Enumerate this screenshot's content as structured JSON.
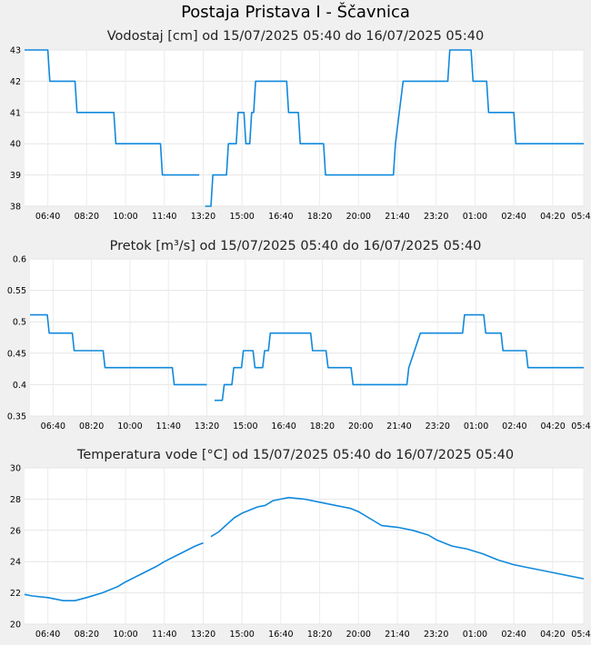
{
  "page": {
    "title": "Postaja Pristava I - Ščavnica"
  },
  "chart_data": [
    {
      "type": "line",
      "title": "Vodostaj [cm] od 15/07/2025 05:40 do 16/07/2025 05:40",
      "xlabel": "",
      "ylabel": "",
      "x_range": [
        "05:40",
        "05:40"
      ],
      "x_ticks": [
        "06:40",
        "08:20",
        "10:00",
        "11:40",
        "13:20",
        "15:00",
        "16:40",
        "18:20",
        "20:00",
        "21:40",
        "23:20",
        "01:00",
        "02:40",
        "04:20",
        "05:40"
      ],
      "ylim": [
        38,
        43
      ],
      "y_ticks": [
        "38",
        "39",
        "40",
        "41",
        "42",
        "43"
      ],
      "grid": true,
      "color": "#1089dc",
      "series": [
        {
          "points": [
            [
              "05:40",
              43
            ],
            [
              "06:40",
              43
            ],
            [
              "06:45",
              42
            ],
            [
              "07:50",
              42
            ],
            [
              "07:55",
              41
            ],
            [
              "09:30",
              41
            ],
            [
              "09:35",
              40
            ],
            [
              "11:30",
              40
            ],
            [
              "11:35",
              39
            ],
            [
              "13:10",
              39
            ],
            null,
            [
              "13:25",
              38
            ],
            [
              "13:40",
              38
            ],
            [
              "13:45",
              39
            ],
            [
              "14:20",
              39
            ],
            [
              "14:25",
              40
            ],
            [
              "14:45",
              40
            ],
            [
              "14:50",
              41
            ],
            [
              "15:05",
              41
            ],
            [
              "15:10",
              40
            ],
            [
              "15:20",
              40
            ],
            [
              "15:25",
              41
            ],
            [
              "15:30",
              41
            ],
            [
              "15:35",
              42
            ],
            [
              "16:55",
              42
            ],
            [
              "17:00",
              41
            ],
            [
              "17:25",
              41
            ],
            [
              "17:30",
              40
            ],
            [
              "18:30",
              40
            ],
            [
              "18:35",
              39
            ],
            [
              "21:30",
              39
            ],
            [
              "21:35",
              40
            ],
            [
              "21:45",
              41
            ],
            [
              "21:55",
              42
            ],
            [
              "23:50",
              42
            ],
            [
              "23:55",
              43
            ],
            [
              "00:50",
              43
            ],
            [
              "00:55",
              42
            ],
            [
              "01:30",
              42
            ],
            [
              "01:35",
              41
            ],
            [
              "02:40",
              41
            ],
            [
              "02:45",
              40
            ],
            [
              "05:40",
              40
            ]
          ]
        }
      ]
    },
    {
      "type": "line",
      "title": "Pretok [m³/s] od 15/07/2025 05:40 do 16/07/2025 05:40",
      "xlabel": "",
      "ylabel": "",
      "x_range": [
        "05:40",
        "05:40"
      ],
      "x_ticks": [
        "06:40",
        "08:20",
        "10:00",
        "11:40",
        "13:20",
        "15:00",
        "16:40",
        "18:20",
        "20:00",
        "21:40",
        "23:20",
        "01:00",
        "02:40",
        "04:20",
        "05:40"
      ],
      "ylim": [
        0.35,
        0.6
      ],
      "y_ticks": [
        "0.35",
        "0.4",
        "0.45",
        "0.5",
        "0.55",
        "0.6"
      ],
      "grid": true,
      "color": "#1089dc",
      "series": [
        {
          "points": [
            [
              "05:40",
              0.511
            ],
            [
              "06:25",
              0.511
            ],
            [
              "06:30",
              0.482
            ],
            [
              "07:30",
              0.482
            ],
            [
              "07:35",
              0.454
            ],
            [
              "08:50",
              0.454
            ],
            [
              "08:55",
              0.427
            ],
            [
              "11:50",
              0.427
            ],
            [
              "11:55",
              0.4
            ],
            [
              "13:20",
              0.4
            ],
            null,
            [
              "13:40",
              0.375
            ],
            [
              "14:00",
              0.375
            ],
            [
              "14:05",
              0.4
            ],
            [
              "14:25",
              0.4
            ],
            [
              "14:30",
              0.427
            ],
            [
              "14:50",
              0.427
            ],
            [
              "14:55",
              0.454
            ],
            [
              "15:20",
              0.454
            ],
            [
              "15:25",
              0.427
            ],
            [
              "15:45",
              0.427
            ],
            [
              "15:50",
              0.454
            ],
            [
              "16:00",
              0.454
            ],
            [
              "16:05",
              0.482
            ],
            [
              "17:50",
              0.482
            ],
            [
              "17:55",
              0.454
            ],
            [
              "18:30",
              0.454
            ],
            [
              "18:35",
              0.427
            ],
            [
              "19:35",
              0.427
            ],
            [
              "19:40",
              0.4
            ],
            [
              "22:00",
              0.4
            ],
            [
              "22:05",
              0.427
            ],
            [
              "22:20",
              0.454
            ],
            [
              "22:35",
              0.482
            ],
            [
              "00:25",
              0.482
            ],
            [
              "00:30",
              0.511
            ],
            [
              "01:20",
              0.511
            ],
            [
              "01:25",
              0.482
            ],
            [
              "02:05",
              0.482
            ],
            [
              "02:10",
              0.454
            ],
            [
              "03:10",
              0.454
            ],
            [
              "03:15",
              0.427
            ],
            [
              "05:40",
              0.427
            ]
          ]
        }
      ]
    },
    {
      "type": "line",
      "title": "Temperatura vode [°C] od 15/07/2025 05:40 do 16/07/2025 05:40",
      "xlabel": "",
      "ylabel": "",
      "x_range": [
        "05:40",
        "05:40"
      ],
      "x_ticks": [
        "06:40",
        "08:20",
        "10:00",
        "11:40",
        "13:20",
        "15:00",
        "16:40",
        "18:20",
        "20:00",
        "21:40",
        "23:20",
        "01:00",
        "02:40",
        "04:20",
        "05:40"
      ],
      "ylim": [
        20,
        30
      ],
      "y_ticks": [
        "20",
        "22",
        "24",
        "26",
        "28",
        "30"
      ],
      "grid": true,
      "color": "#1089dc",
      "series": [
        {
          "points": [
            [
              "05:40",
              21.9
            ],
            [
              "06:00",
              21.8
            ],
            [
              "06:40",
              21.7
            ],
            [
              "07:20",
              21.5
            ],
            [
              "07:50",
              21.5
            ],
            [
              "08:20",
              21.7
            ],
            [
              "09:00",
              22.0
            ],
            [
              "09:40",
              22.4
            ],
            [
              "10:00",
              22.7
            ],
            [
              "10:40",
              23.2
            ],
            [
              "11:20",
              23.7
            ],
            [
              "11:40",
              24.0
            ],
            [
              "12:20",
              24.5
            ],
            [
              "13:00",
              25.0
            ],
            [
              "13:20",
              25.2
            ],
            null,
            [
              "13:40",
              25.6
            ],
            [
              "14:00",
              25.9
            ],
            [
              "14:40",
              26.8
            ],
            [
              "15:00",
              27.1
            ],
            [
              "15:40",
              27.5
            ],
            [
              "16:00",
              27.6
            ],
            [
              "16:20",
              27.9
            ],
            [
              "16:40",
              28.0
            ],
            [
              "17:00",
              28.1
            ],
            [
              "17:40",
              28.0
            ],
            [
              "18:20",
              27.8
            ],
            [
              "19:00",
              27.6
            ],
            [
              "19:40",
              27.4
            ],
            [
              "20:00",
              27.2
            ],
            [
              "20:40",
              26.6
            ],
            [
              "21:00",
              26.3
            ],
            [
              "21:40",
              26.2
            ],
            [
              "22:20",
              26.0
            ],
            [
              "23:00",
              25.7
            ],
            [
              "23:20",
              25.4
            ],
            [
              "24:00",
              25.0
            ],
            [
              "00:40",
              24.8
            ],
            [
              "01:20",
              24.5
            ],
            [
              "02:00",
              24.1
            ],
            [
              "02:40",
              23.8
            ],
            [
              "03:20",
              23.6
            ],
            [
              "04:00",
              23.4
            ],
            [
              "04:40",
              23.2
            ],
            [
              "05:20",
              23.0
            ],
            [
              "05:40",
              22.9
            ]
          ]
        }
      ]
    }
  ]
}
